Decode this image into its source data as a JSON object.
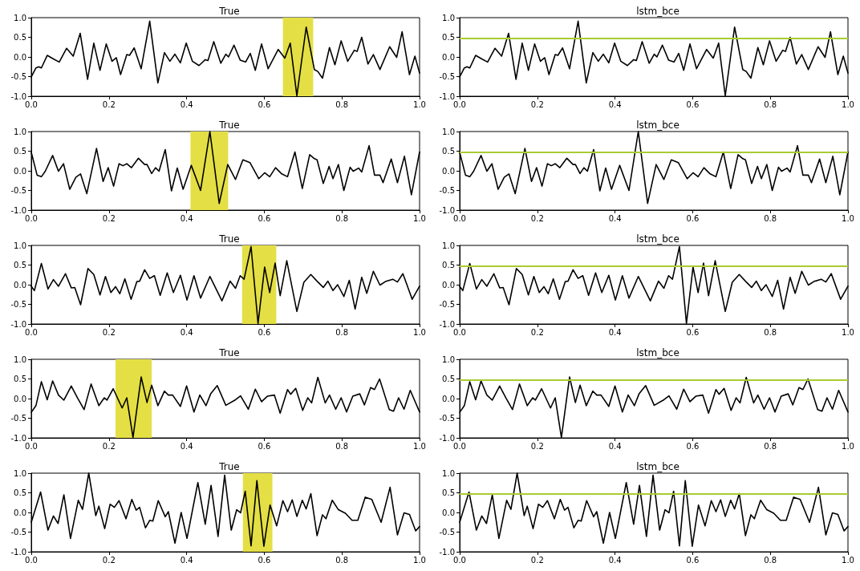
{
  "chart_data": [
    {
      "type": "line",
      "title": "True",
      "x": [
        0,
        0.012,
        0.019,
        0.026,
        0.041,
        0.057,
        0.072,
        0.091,
        0.108,
        0.126,
        0.145,
        0.161,
        0.177,
        0.193,
        0.208,
        0.219,
        0.23,
        0.246,
        0.253,
        0.265,
        0.283,
        0.305,
        0.326,
        0.343,
        0.357,
        0.37,
        0.384,
        0.399,
        0.415,
        0.432,
        0.448,
        0.455,
        0.47,
        0.488,
        0.501,
        0.508,
        0.522,
        0.538,
        0.552,
        0.564,
        0.577,
        0.593,
        0.61,
        0.636,
        0.653,
        0.667,
        0.684,
        0.708,
        0.729,
        0.738,
        0.75,
        0.768,
        0.782,
        0.798,
        0.815,
        0.832,
        0.839,
        0.851,
        0.867,
        0.881,
        0.898,
        0.923,
        0.941,
        0.955,
        0.974,
        0.988,
        1.0
      ],
      "series": [
        {
          "color": "#000000",
          "values": [
            -0.51,
            -0.28,
            -0.25,
            -0.28,
            0.04,
            -0.05,
            -0.13,
            0.22,
            0.02,
            0.6,
            -0.57,
            0.35,
            -0.34,
            0.33,
            -0.11,
            -0.02,
            -0.45,
            0.06,
            0.04,
            0.23,
            -0.3,
            0.91,
            -0.66,
            0.11,
            -0.11,
            0.07,
            -0.15,
            0.35,
            -0.11,
            -0.22,
            -0.07,
            -0.09,
            0.39,
            -0.16,
            0.07,
            0,
            0.3,
            -0.08,
            -0.13,
            0.09,
            -0.34,
            0.33,
            -0.3,
            0.19,
            -0.03,
            0.35,
            -0.99,
            0.76,
            -0.32,
            -0.37,
            -0.54,
            0.24,
            -0.2,
            0.41,
            -0.11,
            0.17,
            0.14,
            0.5,
            -0.18,
            0.06,
            -0.32,
            0.26,
            -0.01,
            0.64,
            -0.45,
            0.02,
            -0.41
          ]
        }
      ],
      "xlim": [
        0,
        1
      ],
      "ylim": [
        -1,
        1
      ],
      "xticks": [
        {
          "value": 0,
          "label": "0.0"
        },
        {
          "value": 0.2,
          "label": "0.2"
        },
        {
          "value": 0.4,
          "label": "0.4"
        },
        {
          "value": 0.6,
          "label": "0.6"
        },
        {
          "value": 0.8,
          "label": "0.8"
        },
        {
          "value": 1,
          "label": "1.0"
        }
      ],
      "yticks": [
        {
          "value": -1,
          "label": "-1.0"
        },
        {
          "value": -0.5,
          "label": "-0.5"
        },
        {
          "value": 0,
          "label": "0.0"
        },
        {
          "value": 0.5,
          "label": "0.5"
        },
        {
          "value": 1,
          "label": "1.0"
        }
      ],
      "bands": [
        {
          "axis": "x",
          "from": 0.648,
          "to": 0.726,
          "color": "#e4df44"
        }
      ]
    },
    {
      "type": "line",
      "title": "lstm_bce",
      "x": [
        0,
        0.012,
        0.019,
        0.026,
        0.041,
        0.057,
        0.072,
        0.091,
        0.108,
        0.126,
        0.145,
        0.161,
        0.177,
        0.193,
        0.208,
        0.219,
        0.23,
        0.246,
        0.253,
        0.265,
        0.283,
        0.305,
        0.326,
        0.343,
        0.357,
        0.37,
        0.384,
        0.399,
        0.415,
        0.432,
        0.448,
        0.455,
        0.47,
        0.488,
        0.501,
        0.508,
        0.522,
        0.538,
        0.552,
        0.564,
        0.577,
        0.593,
        0.61,
        0.636,
        0.653,
        0.667,
        0.684,
        0.708,
        0.729,
        0.738,
        0.75,
        0.768,
        0.782,
        0.798,
        0.815,
        0.832,
        0.839,
        0.851,
        0.867,
        0.881,
        0.898,
        0.923,
        0.941,
        0.955,
        0.974,
        0.988,
        1.0
      ],
      "series": [
        {
          "color": "#000000",
          "values": [
            -0.51,
            -0.28,
            -0.25,
            -0.28,
            0.04,
            -0.05,
            -0.13,
            0.22,
            0.02,
            0.6,
            -0.57,
            0.35,
            -0.34,
            0.33,
            -0.11,
            -0.02,
            -0.45,
            0.06,
            0.04,
            0.23,
            -0.3,
            0.91,
            -0.66,
            0.11,
            -0.11,
            0.07,
            -0.15,
            0.35,
            -0.11,
            -0.22,
            -0.07,
            -0.09,
            0.39,
            -0.16,
            0.07,
            0,
            0.3,
            -0.08,
            -0.13,
            0.09,
            -0.34,
            0.33,
            -0.3,
            0.19,
            -0.03,
            0.35,
            -0.99,
            0.76,
            -0.32,
            -0.37,
            -0.54,
            0.24,
            -0.2,
            0.41,
            -0.11,
            0.17,
            0.14,
            0.5,
            -0.18,
            0.06,
            -0.32,
            0.26,
            -0.01,
            0.64,
            -0.45,
            0.02,
            -0.41
          ]
        }
      ],
      "xlim": [
        0,
        1
      ],
      "ylim": [
        -1,
        1
      ],
      "xticks": [
        {
          "value": 0,
          "label": "0.0"
        },
        {
          "value": 0.2,
          "label": "0.2"
        },
        {
          "value": 0.4,
          "label": "0.4"
        },
        {
          "value": 0.6,
          "label": "0.6"
        },
        {
          "value": 0.8,
          "label": "0.8"
        },
        {
          "value": 1,
          "label": "1.0"
        }
      ],
      "yticks": [
        {
          "value": -1,
          "label": "-1.0"
        },
        {
          "value": -0.5,
          "label": "-0.5"
        },
        {
          "value": 0,
          "label": "0.0"
        },
        {
          "value": 0.5,
          "label": "0.5"
        },
        {
          "value": 1,
          "label": "1.0"
        }
      ],
      "ref_lines": [
        {
          "axis": "y",
          "value": 0.48,
          "color": "#a9cd2f"
        }
      ]
    },
    {
      "type": "line",
      "title": "True",
      "x": [
        0,
        0.015,
        0.026,
        0.036,
        0.055,
        0.07,
        0.083,
        0.099,
        0.115,
        0.127,
        0.143,
        0.168,
        0.185,
        0.198,
        0.212,
        0.226,
        0.236,
        0.246,
        0.258,
        0.276,
        0.292,
        0.298,
        0.31,
        0.32,
        0.329,
        0.345,
        0.361,
        0.376,
        0.391,
        0.412,
        0.436,
        0.46,
        0.484,
        0.506,
        0.526,
        0.545,
        0.563,
        0.586,
        0.601,
        0.614,
        0.629,
        0.644,
        0.66,
        0.679,
        0.698,
        0.717,
        0.729,
        0.736,
        0.752,
        0.767,
        0.777,
        0.791,
        0.805,
        0.821,
        0.829,
        0.843,
        0.851,
        0.87,
        0.884,
        0.898,
        0.906,
        0.927,
        0.943,
        0.961,
        0.979,
        1.0
      ],
      "series": [
        {
          "color": "#000000",
          "values": [
            0.47,
            -0.11,
            -0.15,
            -0.01,
            0.39,
            -0.01,
            0.18,
            -0.47,
            -0.16,
            -0.08,
            -0.58,
            0.57,
            -0.27,
            0.08,
            -0.39,
            0.18,
            0.13,
            0.18,
            0.08,
            0.32,
            0.16,
            0.16,
            -0.07,
            0.08,
            -0.01,
            0.54,
            -0.51,
            0.07,
            -0.47,
            0.14,
            -0.5,
            1.0,
            -0.83,
            0.16,
            -0.22,
            0.28,
            0.21,
            -0.2,
            -0.05,
            -0.15,
            0.08,
            -0.07,
            -0.15,
            0.48,
            -0.45,
            0.41,
            0.31,
            0.28,
            -0.32,
            0.11,
            -0.2,
            0.16,
            -0.5,
            0.09,
            -0.01,
            0.07,
            -0.03,
            0.64,
            -0.11,
            -0.11,
            -0.3,
            0.3,
            -0.3,
            0.37,
            -0.61,
            0.48
          ]
        }
      ],
      "xlim": [
        0,
        1
      ],
      "ylim": [
        -1,
        1
      ],
      "xticks": [
        {
          "value": 0,
          "label": "0.0"
        },
        {
          "value": 0.2,
          "label": "0.2"
        },
        {
          "value": 0.4,
          "label": "0.4"
        },
        {
          "value": 0.6,
          "label": "0.6"
        },
        {
          "value": 0.8,
          "label": "0.8"
        },
        {
          "value": 1,
          "label": "1.0"
        }
      ],
      "yticks": [
        {
          "value": -1,
          "label": "-1.0"
        },
        {
          "value": -0.5,
          "label": "-0.5"
        },
        {
          "value": 0,
          "label": "0.0"
        },
        {
          "value": 0.5,
          "label": "0.5"
        },
        {
          "value": 1,
          "label": "1.0"
        }
      ],
      "bands": [
        {
          "axis": "x",
          "from": 0.41,
          "to": 0.507,
          "color": "#e4df44"
        }
      ]
    },
    {
      "type": "line",
      "title": "lstm_bce",
      "x": [
        0,
        0.015,
        0.026,
        0.036,
        0.055,
        0.07,
        0.083,
        0.099,
        0.115,
        0.127,
        0.143,
        0.168,
        0.185,
        0.198,
        0.212,
        0.226,
        0.236,
        0.246,
        0.258,
        0.276,
        0.292,
        0.298,
        0.31,
        0.32,
        0.329,
        0.345,
        0.361,
        0.376,
        0.391,
        0.412,
        0.436,
        0.46,
        0.484,
        0.506,
        0.526,
        0.545,
        0.563,
        0.586,
        0.601,
        0.614,
        0.629,
        0.644,
        0.66,
        0.679,
        0.698,
        0.717,
        0.729,
        0.736,
        0.752,
        0.767,
        0.777,
        0.791,
        0.805,
        0.821,
        0.829,
        0.843,
        0.851,
        0.87,
        0.884,
        0.898,
        0.906,
        0.927,
        0.943,
        0.961,
        0.979,
        1.0
      ],
      "series": [
        {
          "color": "#000000",
          "values": [
            0.47,
            -0.11,
            -0.15,
            -0.01,
            0.39,
            -0.01,
            0.18,
            -0.47,
            -0.16,
            -0.08,
            -0.58,
            0.57,
            -0.27,
            0.08,
            -0.39,
            0.18,
            0.13,
            0.18,
            0.08,
            0.32,
            0.16,
            0.16,
            -0.07,
            0.08,
            -0.01,
            0.54,
            -0.51,
            0.07,
            -0.47,
            0.14,
            -0.5,
            1.0,
            -0.83,
            0.16,
            -0.22,
            0.28,
            0.21,
            -0.2,
            -0.05,
            -0.15,
            0.08,
            -0.07,
            -0.15,
            0.48,
            -0.45,
            0.41,
            0.31,
            0.28,
            -0.32,
            0.11,
            -0.2,
            0.16,
            -0.5,
            0.09,
            -0.01,
            0.07,
            -0.03,
            0.64,
            -0.11,
            -0.11,
            -0.3,
            0.3,
            -0.3,
            0.37,
            -0.61,
            0.48
          ]
        }
      ],
      "xlim": [
        0,
        1
      ],
      "ylim": [
        -1,
        1
      ],
      "xticks": [
        {
          "value": 0,
          "label": "0.0"
        },
        {
          "value": 0.2,
          "label": "0.2"
        },
        {
          "value": 0.4,
          "label": "0.4"
        },
        {
          "value": 0.6,
          "label": "0.6"
        },
        {
          "value": 0.8,
          "label": "0.8"
        },
        {
          "value": 1,
          "label": "1.0"
        }
      ],
      "yticks": [
        {
          "value": -1,
          "label": "-1.0"
        },
        {
          "value": -0.5,
          "label": "-0.5"
        },
        {
          "value": 0,
          "label": "0.0"
        },
        {
          "value": 0.5,
          "label": "0.5"
        },
        {
          "value": 1,
          "label": "1.0"
        }
      ],
      "ref_lines": [
        {
          "axis": "y",
          "value": 0.48,
          "color": "#a9cd2f"
        }
      ]
    },
    {
      "type": "line",
      "title": "True",
      "x": [
        0,
        0.008,
        0.026,
        0.043,
        0.057,
        0.07,
        0.088,
        0.103,
        0.112,
        0.127,
        0.146,
        0.161,
        0.177,
        0.191,
        0.205,
        0.217,
        0.228,
        0.241,
        0.257,
        0.272,
        0.279,
        0.292,
        0.305,
        0.317,
        0.332,
        0.35,
        0.366,
        0.384,
        0.401,
        0.419,
        0.436,
        0.46,
        0.491,
        0.512,
        0.526,
        0.538,
        0.548,
        0.566,
        0.584,
        0.601,
        0.614,
        0.628,
        0.641,
        0.658,
        0.684,
        0.702,
        0.72,
        0.736,
        0.752,
        0.764,
        0.777,
        0.789,
        0.805,
        0.819,
        0.834,
        0.851,
        0.864,
        0.881,
        0.898,
        0.912,
        0.931,
        0.943,
        0.957,
        0.981,
        1.0
      ],
      "series": [
        {
          "color": "#000000",
          "values": [
            -0.04,
            -0.15,
            0.54,
            -0.11,
            0.13,
            -0.04,
            0.28,
            -0.08,
            -0.07,
            -0.51,
            0.41,
            0.26,
            -0.26,
            0.21,
            -0.2,
            -0.05,
            -0.23,
            0.15,
            -0.37,
            0.08,
            0.09,
            0.38,
            0.16,
            0.23,
            -0.27,
            0.3,
            -0.2,
            0.24,
            -0.39,
            0.23,
            -0.34,
            0.21,
            -0.41,
            0.09,
            -0.09,
            0.23,
            0.14,
            0.97,
            -0.99,
            0.45,
            -0.2,
            0.55,
            -0.28,
            0.61,
            -0.68,
            0.06,
            0.26,
            0.09,
            -0.07,
            0.09,
            -0.15,
            0,
            -0.3,
            0.11,
            -0.62,
            0.19,
            -0.22,
            0.34,
            -0.01,
            0.08,
            0.14,
            0.07,
            0.28,
            -0.37,
            -0.04
          ]
        }
      ],
      "xlim": [
        0,
        1
      ],
      "ylim": [
        -1,
        1
      ],
      "xticks": [
        {
          "value": 0,
          "label": "0.0"
        },
        {
          "value": 0.2,
          "label": "0.2"
        },
        {
          "value": 0.4,
          "label": "0.4"
        },
        {
          "value": 0.6,
          "label": "0.6"
        },
        {
          "value": 0.8,
          "label": "0.8"
        },
        {
          "value": 1,
          "label": "1.0"
        }
      ],
      "yticks": [
        {
          "value": -1,
          "label": "-1.0"
        },
        {
          "value": -0.5,
          "label": "-0.5"
        },
        {
          "value": 0,
          "label": "0.0"
        },
        {
          "value": 0.5,
          "label": "0.5"
        },
        {
          "value": 1,
          "label": "1.0"
        }
      ],
      "bands": [
        {
          "axis": "x",
          "from": 0.543,
          "to": 0.631,
          "color": "#e4df44"
        }
      ]
    },
    {
      "type": "line",
      "title": "lstm_bce",
      "x": [
        0,
        0.008,
        0.026,
        0.043,
        0.057,
        0.07,
        0.088,
        0.103,
        0.112,
        0.127,
        0.146,
        0.161,
        0.177,
        0.191,
        0.205,
        0.217,
        0.228,
        0.241,
        0.257,
        0.272,
        0.279,
        0.292,
        0.305,
        0.317,
        0.332,
        0.35,
        0.366,
        0.384,
        0.401,
        0.419,
        0.436,
        0.46,
        0.491,
        0.512,
        0.526,
        0.538,
        0.548,
        0.566,
        0.584,
        0.601,
        0.614,
        0.628,
        0.641,
        0.658,
        0.684,
        0.702,
        0.72,
        0.736,
        0.752,
        0.764,
        0.777,
        0.789,
        0.805,
        0.819,
        0.834,
        0.851,
        0.864,
        0.881,
        0.898,
        0.912,
        0.931,
        0.943,
        0.957,
        0.981,
        1.0
      ],
      "series": [
        {
          "color": "#000000",
          "values": [
            -0.04,
            -0.15,
            0.54,
            -0.11,
            0.13,
            -0.04,
            0.28,
            -0.08,
            -0.07,
            -0.51,
            0.41,
            0.26,
            -0.26,
            0.21,
            -0.2,
            -0.05,
            -0.23,
            0.15,
            -0.37,
            0.08,
            0.09,
            0.38,
            0.16,
            0.23,
            -0.27,
            0.3,
            -0.2,
            0.24,
            -0.39,
            0.23,
            -0.34,
            0.21,
            -0.41,
            0.09,
            -0.09,
            0.23,
            0.14,
            0.97,
            -0.99,
            0.45,
            -0.2,
            0.55,
            -0.28,
            0.61,
            -0.68,
            0.06,
            0.26,
            0.09,
            -0.07,
            0.09,
            -0.15,
            0,
            -0.3,
            0.11,
            -0.62,
            0.19,
            -0.22,
            0.34,
            -0.01,
            0.08,
            0.14,
            0.07,
            0.28,
            -0.37,
            -0.04
          ]
        }
      ],
      "xlim": [
        0,
        1
      ],
      "ylim": [
        -1,
        1
      ],
      "xticks": [
        {
          "value": 0,
          "label": "0.0"
        },
        {
          "value": 0.2,
          "label": "0.2"
        },
        {
          "value": 0.4,
          "label": "0.4"
        },
        {
          "value": 0.6,
          "label": "0.6"
        },
        {
          "value": 0.8,
          "label": "0.8"
        },
        {
          "value": 1,
          "label": "1.0"
        }
      ],
      "yticks": [
        {
          "value": -1,
          "label": "-1.0"
        },
        {
          "value": -0.5,
          "label": "-0.5"
        },
        {
          "value": 0,
          "label": "0.0"
        },
        {
          "value": 0.5,
          "label": "0.5"
        },
        {
          "value": 1,
          "label": "1.0"
        }
      ],
      "ref_lines": [
        {
          "axis": "y",
          "value": 0.48,
          "color": "#a9cd2f"
        }
      ]
    },
    {
      "type": "line",
      "title": "True",
      "x": [
        0,
        0.012,
        0.026,
        0.041,
        0.055,
        0.07,
        0.084,
        0.103,
        0.119,
        0.136,
        0.154,
        0.174,
        0.188,
        0.195,
        0.211,
        0.234,
        0.246,
        0.262,
        0.283,
        0.298,
        0.31,
        0.326,
        0.343,
        0.353,
        0.364,
        0.384,
        0.4,
        0.419,
        0.434,
        0.45,
        0.462,
        0.479,
        0.501,
        0.526,
        0.539,
        0.559,
        0.577,
        0.593,
        0.608,
        0.626,
        0.641,
        0.66,
        0.668,
        0.681,
        0.699,
        0.712,
        0.722,
        0.738,
        0.757,
        0.768,
        0.784,
        0.798,
        0.812,
        0.828,
        0.846,
        0.858,
        0.874,
        0.884,
        0.897,
        0.922,
        0.933,
        0.946,
        0.96,
        0.976,
        1.0
      ],
      "series": [
        {
          "color": "#000000",
          "values": [
            -0.35,
            -0.18,
            0.43,
            -0.03,
            0.45,
            0.09,
            -0.04,
            0.32,
            0.02,
            -0.28,
            0.37,
            -0.18,
            0.02,
            -0.04,
            0.25,
            -0.24,
            0.02,
            -0.99,
            0.55,
            -0.1,
            0.34,
            -0.18,
            0.19,
            0.09,
            0.09,
            -0.2,
            0.32,
            -0.34,
            0.09,
            -0.18,
            0.12,
            0.33,
            -0.17,
            -0.03,
            0.07,
            -0.27,
            0.24,
            -0.08,
            0.06,
            0.09,
            -0.37,
            0.23,
            0.11,
            0.26,
            -0.3,
            0.02,
            -0.11,
            0.54,
            -0.11,
            0.09,
            -0.27,
            0.02,
            -0.34,
            0.06,
            0.12,
            -0.16,
            0.28,
            0.23,
            0.5,
            -0.28,
            -0.32,
            0.02,
            -0.27,
            0.21,
            -0.34
          ]
        }
      ],
      "xlim": [
        0,
        1
      ],
      "ylim": [
        -1,
        1
      ],
      "xticks": [
        {
          "value": 0,
          "label": "0.0"
        },
        {
          "value": 0.2,
          "label": "0.2"
        },
        {
          "value": 0.4,
          "label": "0.4"
        },
        {
          "value": 0.6,
          "label": "0.6"
        },
        {
          "value": 0.8,
          "label": "0.8"
        },
        {
          "value": 1,
          "label": "1.0"
        }
      ],
      "yticks": [
        {
          "value": -1,
          "label": "-1.0"
        },
        {
          "value": -0.5,
          "label": "-0.5"
        },
        {
          "value": 0,
          "label": "0.0"
        },
        {
          "value": 0.5,
          "label": "0.5"
        },
        {
          "value": 1,
          "label": "1.0"
        }
      ],
      "bands": [
        {
          "axis": "x",
          "from": 0.217,
          "to": 0.31,
          "color": "#e4df44"
        }
      ]
    },
    {
      "type": "line",
      "title": "lstm_bce",
      "x": [
        0,
        0.012,
        0.026,
        0.041,
        0.055,
        0.07,
        0.084,
        0.103,
        0.119,
        0.136,
        0.154,
        0.174,
        0.188,
        0.195,
        0.211,
        0.234,
        0.246,
        0.262,
        0.283,
        0.298,
        0.31,
        0.326,
        0.343,
        0.353,
        0.364,
        0.384,
        0.4,
        0.419,
        0.434,
        0.45,
        0.462,
        0.479,
        0.501,
        0.526,
        0.539,
        0.559,
        0.577,
        0.593,
        0.608,
        0.626,
        0.641,
        0.66,
        0.668,
        0.681,
        0.699,
        0.712,
        0.722,
        0.738,
        0.757,
        0.768,
        0.784,
        0.798,
        0.812,
        0.828,
        0.846,
        0.858,
        0.874,
        0.884,
        0.897,
        0.922,
        0.933,
        0.946,
        0.96,
        0.976,
        1.0
      ],
      "series": [
        {
          "color": "#000000",
          "values": [
            -0.35,
            -0.18,
            0.43,
            -0.03,
            0.45,
            0.09,
            -0.04,
            0.32,
            0.02,
            -0.28,
            0.37,
            -0.18,
            0.02,
            -0.04,
            0.25,
            -0.24,
            0.02,
            -0.99,
            0.55,
            -0.1,
            0.34,
            -0.18,
            0.19,
            0.09,
            0.09,
            -0.2,
            0.32,
            -0.34,
            0.09,
            -0.18,
            0.12,
            0.33,
            -0.17,
            -0.03,
            0.07,
            -0.27,
            0.24,
            -0.08,
            0.06,
            0.09,
            -0.37,
            0.23,
            0.11,
            0.26,
            -0.3,
            0.02,
            -0.11,
            0.54,
            -0.11,
            0.09,
            -0.27,
            0.02,
            -0.34,
            0.06,
            0.12,
            -0.16,
            0.28,
            0.23,
            0.5,
            -0.28,
            -0.32,
            0.02,
            -0.27,
            0.21,
            -0.34
          ]
        }
      ],
      "xlim": [
        0,
        1
      ],
      "ylim": [
        -1,
        1
      ],
      "xticks": [
        {
          "value": 0,
          "label": "0.0"
        },
        {
          "value": 0.2,
          "label": "0.2"
        },
        {
          "value": 0.4,
          "label": "0.4"
        },
        {
          "value": 0.6,
          "label": "0.6"
        },
        {
          "value": 0.8,
          "label": "0.8"
        },
        {
          "value": 1,
          "label": "1.0"
        }
      ],
      "yticks": [
        {
          "value": -1,
          "label": "-1.0"
        },
        {
          "value": -0.5,
          "label": "-0.5"
        },
        {
          "value": 0,
          "label": "0.0"
        },
        {
          "value": 0.5,
          "label": "0.5"
        },
        {
          "value": 1,
          "label": "1.0"
        }
      ],
      "ref_lines": [
        {
          "axis": "y",
          "value": 0.48,
          "color": "#a9cd2f"
        }
      ]
    },
    {
      "type": "line",
      "title": "True",
      "x": [
        0,
        0.024,
        0.043,
        0.057,
        0.069,
        0.084,
        0.101,
        0.121,
        0.132,
        0.148,
        0.166,
        0.174,
        0.189,
        0.203,
        0.214,
        0.226,
        0.244,
        0.259,
        0.27,
        0.279,
        0.294,
        0.305,
        0.313,
        0.327,
        0.345,
        0.353,
        0.37,
        0.386,
        0.401,
        0.429,
        0.448,
        0.463,
        0.481,
        0.498,
        0.515,
        0.529,
        0.539,
        0.551,
        0.566,
        0.581,
        0.599,
        0.615,
        0.632,
        0.648,
        0.66,
        0.672,
        0.684,
        0.698,
        0.708,
        0.72,
        0.736,
        0.75,
        0.759,
        0.775,
        0.791,
        0.809,
        0.826,
        0.841,
        0.86,
        0.877,
        0.901,
        0.924,
        0.943,
        0.96,
        0.974,
        0.99,
        1.0
      ],
      "series": [
        {
          "color": "#000000",
          "values": [
            -0.25,
            0.52,
            -0.45,
            -0.09,
            -0.28,
            0.45,
            -0.66,
            0.31,
            0.08,
            1.0,
            -0.08,
            0.16,
            -0.41,
            0.21,
            0.13,
            0.3,
            -0.16,
            0.33,
            0.06,
            0.13,
            -0.39,
            -0.2,
            -0.22,
            0.3,
            -0.11,
            0.02,
            -0.78,
            0,
            -0.66,
            0.76,
            -0.3,
            0.69,
            -0.61,
            0.95,
            -0.45,
            0.07,
            -0.01,
            0.54,
            -0.85,
            0.81,
            -0.86,
            0.19,
            -0.34,
            0.3,
            0.02,
            0.32,
            -0.1,
            0.31,
            0.09,
            0.48,
            -0.59,
            -0.06,
            -0.16,
            0.31,
            0.07,
            -0.02,
            -0.2,
            -0.2,
            0.39,
            0.33,
            -0.25,
            0.64,
            -0.57,
            -0.01,
            -0.05,
            -0.47,
            -0.36
          ]
        }
      ],
      "xlim": [
        0,
        1
      ],
      "ylim": [
        -1,
        1
      ],
      "xticks": [
        {
          "value": 0,
          "label": "0.0"
        },
        {
          "value": 0.2,
          "label": "0.2"
        },
        {
          "value": 0.4,
          "label": "0.4"
        },
        {
          "value": 0.6,
          "label": "0.6"
        },
        {
          "value": 0.8,
          "label": "0.8"
        },
        {
          "value": 1,
          "label": "1.0"
        }
      ],
      "yticks": [
        {
          "value": -1,
          "label": "-1.0"
        },
        {
          "value": -0.5,
          "label": "-0.5"
        },
        {
          "value": 0,
          "label": "0.0"
        },
        {
          "value": 0.5,
          "label": "0.5"
        },
        {
          "value": 1,
          "label": "1.0"
        }
      ],
      "bands": [
        {
          "axis": "x",
          "from": 0.545,
          "to": 0.621,
          "color": "#e4df44"
        }
      ]
    },
    {
      "type": "line",
      "title": "lstm_bce",
      "x": [
        0,
        0.024,
        0.043,
        0.057,
        0.069,
        0.084,
        0.101,
        0.121,
        0.132,
        0.148,
        0.166,
        0.174,
        0.189,
        0.203,
        0.214,
        0.226,
        0.244,
        0.259,
        0.27,
        0.279,
        0.294,
        0.305,
        0.313,
        0.327,
        0.345,
        0.353,
        0.37,
        0.386,
        0.401,
        0.429,
        0.448,
        0.463,
        0.481,
        0.498,
        0.515,
        0.529,
        0.539,
        0.551,
        0.566,
        0.581,
        0.599,
        0.615,
        0.632,
        0.648,
        0.66,
        0.672,
        0.684,
        0.698,
        0.708,
        0.72,
        0.736,
        0.75,
        0.759,
        0.775,
        0.791,
        0.809,
        0.826,
        0.841,
        0.86,
        0.877,
        0.901,
        0.924,
        0.943,
        0.96,
        0.974,
        0.99,
        1.0
      ],
      "series": [
        {
          "color": "#000000",
          "values": [
            -0.25,
            0.52,
            -0.45,
            -0.09,
            -0.28,
            0.45,
            -0.66,
            0.31,
            0.08,
            1.0,
            -0.08,
            0.16,
            -0.41,
            0.21,
            0.13,
            0.3,
            -0.16,
            0.33,
            0.06,
            0.13,
            -0.39,
            -0.2,
            -0.22,
            0.3,
            -0.11,
            0.02,
            -0.78,
            0,
            -0.66,
            0.76,
            -0.3,
            0.69,
            -0.61,
            0.95,
            -0.45,
            0.07,
            -0.01,
            0.54,
            -0.85,
            0.81,
            -0.86,
            0.19,
            -0.34,
            0.3,
            0.02,
            0.32,
            -0.1,
            0.31,
            0.09,
            0.48,
            -0.59,
            -0.06,
            -0.16,
            0.31,
            0.07,
            -0.02,
            -0.2,
            -0.2,
            0.39,
            0.33,
            -0.25,
            0.64,
            -0.57,
            -0.01,
            -0.05,
            -0.47,
            -0.36
          ]
        }
      ],
      "xlim": [
        0,
        1
      ],
      "ylim": [
        -1,
        1
      ],
      "xticks": [
        {
          "value": 0,
          "label": "0.0"
        },
        {
          "value": 0.2,
          "label": "0.2"
        },
        {
          "value": 0.4,
          "label": "0.4"
        },
        {
          "value": 0.6,
          "label": "0.6"
        },
        {
          "value": 0.8,
          "label": "0.8"
        },
        {
          "value": 1,
          "label": "1.0"
        }
      ],
      "yticks": [
        {
          "value": -1,
          "label": "-1.0"
        },
        {
          "value": -0.5,
          "label": "-0.5"
        },
        {
          "value": 0,
          "label": "0.0"
        },
        {
          "value": 0.5,
          "label": "0.5"
        },
        {
          "value": 1,
          "label": "1.0"
        }
      ],
      "ref_lines": [
        {
          "axis": "y",
          "value": 0.48,
          "color": "#a9cd2f"
        }
      ]
    }
  ]
}
